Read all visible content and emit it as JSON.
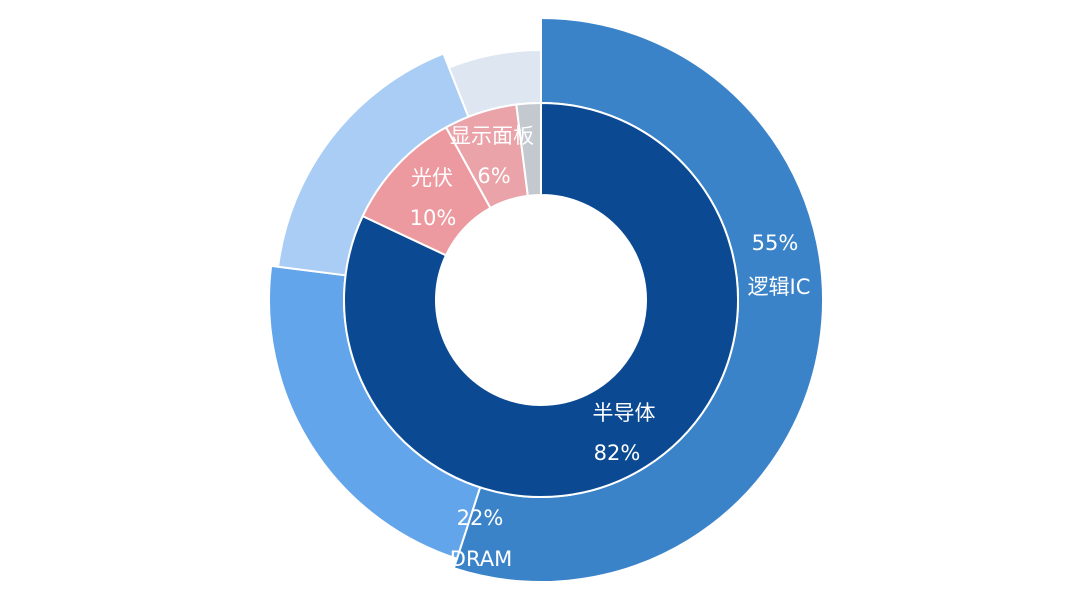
{
  "chart_data": {
    "type": "pie",
    "subtype": "sunburst",
    "inner_ring": [
      {
        "label": "半导体",
        "value_text": "82%",
        "value": 82,
        "color": "#0b4a93"
      },
      {
        "label": "光伏",
        "value_text": "10%",
        "value": 10,
        "color": "#ec9aa0"
      },
      {
        "label": "显示面板",
        "value_text": "6%",
        "value": 6,
        "color": "#eaa3a8"
      },
      {
        "label": "",
        "value_text": "",
        "value": 2,
        "color": "#c4c8cf"
      }
    ],
    "outer_ring": [
      {
        "label": "逻辑IC",
        "value_text": "55%",
        "value": 55,
        "color": "#3a83c9"
      },
      {
        "label": "DRAM",
        "value_text": "22%",
        "value": 22,
        "color": "#63a5ea"
      },
      {
        "label": "",
        "value_text": "",
        "value": 17,
        "color": "#a9cdf4"
      },
      {
        "label": "",
        "value_text": "",
        "value": 6,
        "color": "#dde6f1"
      }
    ]
  }
}
